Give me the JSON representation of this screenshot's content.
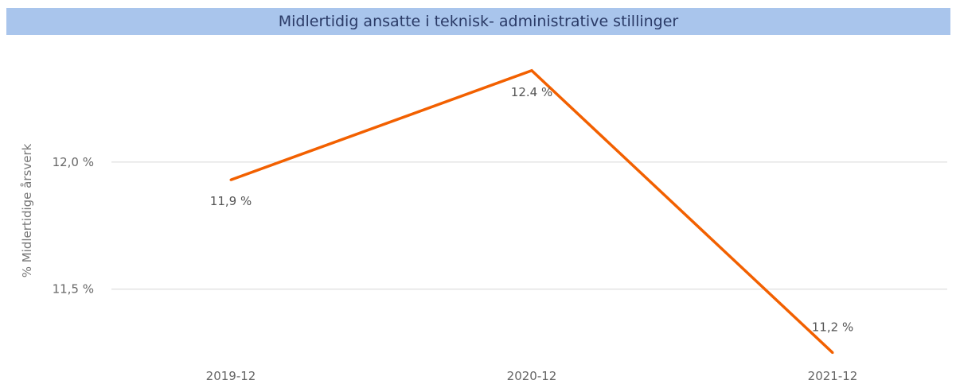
{
  "chart_data": {
    "type": "line",
    "title": "Midlertidig ansatte i teknisk- administrative stillinger",
    "ylabel": "% Midlertidige årsverk",
    "xlabel": "",
    "categories": [
      "2019-12",
      "2020-12",
      "2021-12"
    ],
    "series": [
      {
        "values": [
          11.93,
          12.36,
          11.25
        ],
        "data_labels": [
          "11,9 %",
          "12.4 %",
          "11,2 %"
        ],
        "color": "#f26000"
      }
    ],
    "y_ticks": [
      {
        "value": 12.0,
        "label": "12,0 %"
      },
      {
        "value": 11.5,
        "label": "11,5 %"
      }
    ],
    "ylim": [
      11.23,
      12.45
    ],
    "grid": true,
    "legend": "none"
  }
}
